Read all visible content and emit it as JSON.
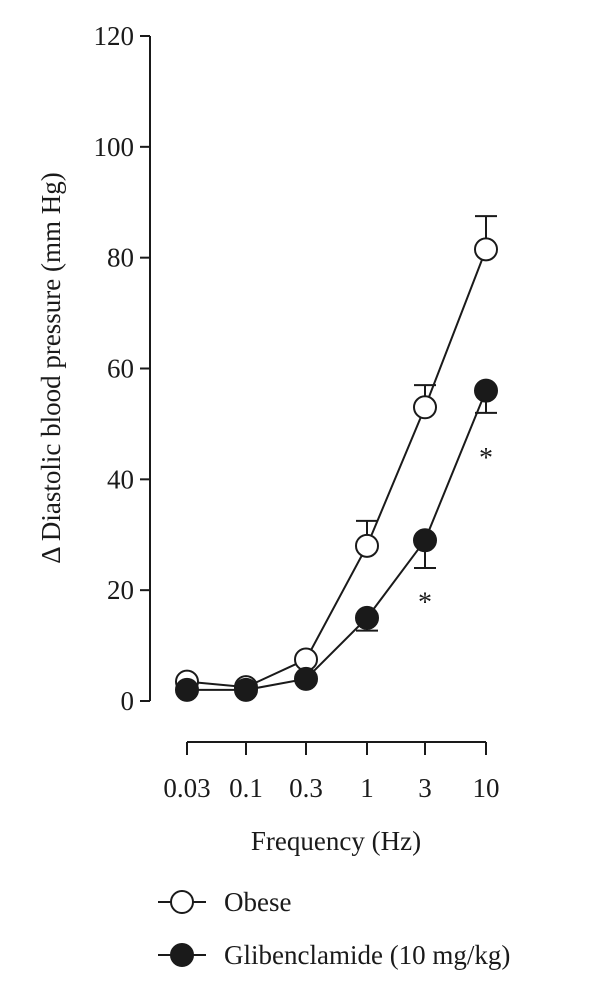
{
  "chart_data": {
    "type": "line",
    "title": "",
    "xlabel": "Frequency (Hz)",
    "ylabel": "Δ Diastolic blood pressure (mm Hg)",
    "x_tick_labels": [
      "0.03",
      "0.1",
      "0.3",
      "1",
      "3",
      "10"
    ],
    "y_ticks": [
      0,
      20,
      40,
      60,
      80,
      100,
      120
    ],
    "ylim": [
      0,
      120
    ],
    "grid": false,
    "legend_position": "bottom-left",
    "series": [
      {
        "name": "Obese",
        "marker": "open-circle",
        "values": [
          3.5,
          2.5,
          7.5,
          28,
          53,
          81.5
        ],
        "error": [
          0,
          0,
          0,
          4.5,
          4,
          6
        ]
      },
      {
        "name": "Glibenclamide (10 mg/kg)",
        "marker": "filled-circle",
        "values": [
          2,
          2,
          4,
          15,
          29,
          56
        ],
        "error": [
          0,
          0,
          0,
          2.3,
          5,
          4
        ]
      }
    ],
    "annotations": [
      {
        "text": "*",
        "x_index": 4,
        "y": 18
      },
      {
        "text": "*",
        "x_index": 5,
        "y": 44
      }
    ]
  },
  "colors": {
    "ink": "#1a1a1a",
    "background": "#ffffff"
  }
}
